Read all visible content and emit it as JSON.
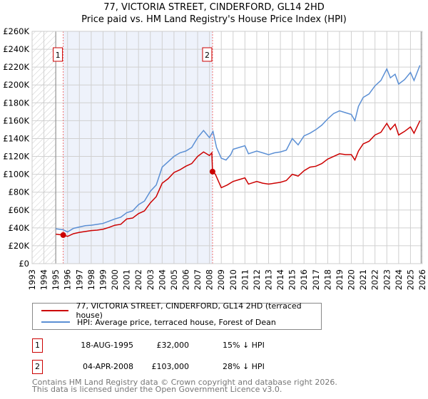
{
  "chart_data": {
    "type": "line",
    "title": "77, VICTORIA STREET, CINDERFORD, GL14 2HD",
    "subtitle": "Price paid vs. HM Land Registry's House Price Index (HPI)",
    "xlim": [
      1993,
      2026
    ],
    "ylim": [
      0,
      260000
    ],
    "grid": true,
    "x_ticks": [
      "1993",
      "1994",
      "1995",
      "1996",
      "1997",
      "1998",
      "1999",
      "2000",
      "2001",
      "2002",
      "2003",
      "2004",
      "2005",
      "2006",
      "2007",
      "2008",
      "2009",
      "2010",
      "2011",
      "2012",
      "2013",
      "2014",
      "2015",
      "2016",
      "2017",
      "2018",
      "2019",
      "2020",
      "2021",
      "2022",
      "2023",
      "2024",
      "2025",
      "2026"
    ],
    "y_ticks": [
      {
        "v": 0,
        "label": "£0"
      },
      {
        "v": 20000,
        "label": "£20K"
      },
      {
        "v": 40000,
        "label": "£40K"
      },
      {
        "v": 60000,
        "label": "£60K"
      },
      {
        "v": 80000,
        "label": "£80K"
      },
      {
        "v": 100000,
        "label": "£100K"
      },
      {
        "v": 120000,
        "label": "£120K"
      },
      {
        "v": 140000,
        "label": "£140K"
      },
      {
        "v": 160000,
        "label": "£160K"
      },
      {
        "v": 180000,
        "label": "£180K"
      },
      {
        "v": 200000,
        "label": "£200K"
      },
      {
        "v": 220000,
        "label": "£220K"
      },
      {
        "v": 240000,
        "label": "£240K"
      },
      {
        "v": 260000,
        "label": "£260K"
      }
    ],
    "series": [
      {
        "name": "77, VICTORIA STREET, CINDERFORD, GL14 2HD (terraced house)",
        "color": "#cc0000",
        "x": [
          1995.0,
          1995.6,
          1996.0,
          1996.5,
          1997,
          1997.5,
          1998,
          1998.5,
          1999,
          1999.5,
          2000,
          2000.5,
          2001,
          2001.5,
          2002,
          2002.5,
          2003,
          2003.5,
          2004,
          2004.5,
          2005,
          2005.5,
          2006,
          2006.5,
          2007,
          2007.5,
          2008,
          2008.2,
          2008.26,
          2008.5,
          2009,
          2009.5,
          2010,
          2010.5,
          2011,
          2011.3,
          2012,
          2012.5,
          2013,
          2013.5,
          2014,
          2014.5,
          2015,
          2015.5,
          2016,
          2016.5,
          2017,
          2017.5,
          2018,
          2018.5,
          2019,
          2019.5,
          2020,
          2020.3,
          2020.6,
          2021,
          2021.5,
          2022,
          2022.5,
          2023,
          2023.3,
          2023.7,
          2024,
          2024.5,
          2025,
          2025.3,
          2025.8
        ],
        "y": [
          33000,
          32000,
          30500,
          33500,
          35000,
          36000,
          37000,
          37500,
          38500,
          40500,
          43000,
          44000,
          50000,
          51000,
          56000,
          59000,
          68000,
          75000,
          90000,
          95000,
          102000,
          105000,
          109000,
          112000,
          120000,
          125000,
          121000,
          124000,
          103000,
          100000,
          85000,
          88000,
          92000,
          94000,
          96000,
          89000,
          92000,
          90000,
          89000,
          90000,
          91000,
          93000,
          100000,
          98000,
          104000,
          108000,
          109000,
          112000,
          117000,
          120000,
          123000,
          122000,
          122000,
          116000,
          126000,
          134000,
          137000,
          144000,
          147000,
          157000,
          150000,
          156000,
          144000,
          148000,
          153000,
          146000,
          160000
        ]
      },
      {
        "name": "HPI: Average price, terraced house, Forest of Dean",
        "color": "#5b8fd4",
        "x": [
          1995.0,
          1995.6,
          1996.0,
          1996.5,
          1997,
          1997.5,
          1998,
          1998.5,
          1999,
          1999.5,
          2000,
          2000.5,
          2001,
          2001.5,
          2002,
          2002.5,
          2003,
          2003.5,
          2004,
          2004.5,
          2005,
          2005.5,
          2006,
          2006.5,
          2007,
          2007.5,
          2008,
          2008.3,
          2008.6,
          2009,
          2009.4,
          2009.8,
          2010,
          2010.5,
          2011,
          2011.3,
          2012,
          2012.5,
          2013,
          2013.5,
          2014,
          2014.5,
          2015,
          2015.5,
          2016,
          2016.5,
          2017,
          2017.5,
          2018,
          2018.5,
          2019,
          2019.5,
          2020,
          2020.3,
          2020.6,
          2021,
          2021.5,
          2022,
          2022.5,
          2023,
          2023.3,
          2023.7,
          2024,
          2024.5,
          2025,
          2025.3,
          2025.8
        ],
        "y": [
          39000,
          38000,
          35500,
          39500,
          41000,
          42500,
          43000,
          44000,
          45000,
          47500,
          50000,
          52000,
          57000,
          59000,
          66000,
          70000,
          81000,
          88000,
          108000,
          114000,
          120000,
          124000,
          126000,
          130000,
          141000,
          149000,
          141000,
          148000,
          130000,
          118000,
          116000,
          122000,
          128000,
          130000,
          132000,
          123000,
          126000,
          124000,
          122000,
          124000,
          125000,
          127000,
          140000,
          133000,
          143000,
          146000,
          150000,
          155000,
          162000,
          168000,
          171000,
          169000,
          167000,
          160000,
          176000,
          186000,
          190000,
          199000,
          205000,
          218000,
          208000,
          212000,
          201000,
          206000,
          214000,
          205000,
          222000
        ]
      }
    ],
    "annotations": [
      {
        "id": "1",
        "x": 1995.63,
        "y": 32000
      },
      {
        "id": "2",
        "x": 2008.26,
        "y": 103000
      }
    ]
  },
  "legend": {
    "property": "77, VICTORIA STREET, CINDERFORD, GL14 2HD (terraced house)",
    "hpi": "HPI: Average price, terraced house, Forest of Dean"
  },
  "sales": [
    {
      "num": "1",
      "date": "18-AUG-1995",
      "price": "£32,000",
      "hpi": "15% ↓ HPI"
    },
    {
      "num": "2",
      "date": "04-APR-2008",
      "price": "£103,000",
      "hpi": "28% ↓ HPI"
    }
  ],
  "footer": {
    "line1": "Contains HM Land Registry data © Crown copyright and database right 2026.",
    "line2": "This data is licensed under the Open Government Licence v3.0."
  }
}
